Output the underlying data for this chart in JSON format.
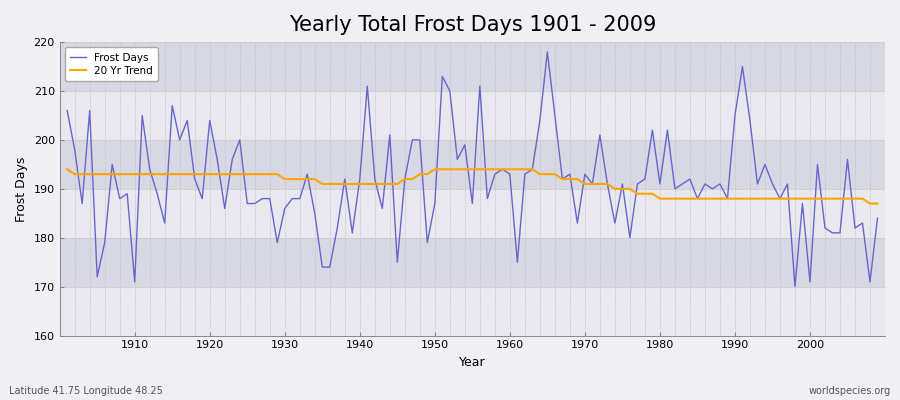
{
  "title": "Yearly Total Frost Days 1901 - 2009",
  "xlabel": "Year",
  "ylabel": "Frost Days",
  "bottom_left_label": "Latitude 41.75 Longitude 48.25",
  "bottom_right_label": "worldspecies.org",
  "years": [
    1901,
    1902,
    1903,
    1904,
    1905,
    1906,
    1907,
    1908,
    1909,
    1910,
    1911,
    1912,
    1913,
    1914,
    1915,
    1916,
    1917,
    1918,
    1919,
    1920,
    1921,
    1922,
    1923,
    1924,
    1925,
    1926,
    1927,
    1928,
    1929,
    1930,
    1931,
    1932,
    1933,
    1934,
    1935,
    1936,
    1937,
    1938,
    1939,
    1940,
    1941,
    1942,
    1943,
    1944,
    1945,
    1946,
    1947,
    1948,
    1949,
    1950,
    1951,
    1952,
    1953,
    1954,
    1955,
    1956,
    1957,
    1958,
    1959,
    1960,
    1961,
    1962,
    1963,
    1964,
    1965,
    1966,
    1967,
    1968,
    1969,
    1970,
    1971,
    1972,
    1973,
    1974,
    1975,
    1976,
    1977,
    1978,
    1979,
    1980,
    1981,
    1982,
    1983,
    1984,
    1985,
    1986,
    1987,
    1988,
    1989,
    1990,
    1991,
    1992,
    1993,
    1994,
    1995,
    1996,
    1997,
    1998,
    1999,
    2000,
    2001,
    2002,
    2003,
    2004,
    2005,
    2006,
    2007,
    2008,
    2009
  ],
  "frost_days": [
    206,
    198,
    187,
    206,
    172,
    179,
    195,
    188,
    189,
    171,
    205,
    194,
    189,
    183,
    207,
    200,
    204,
    192,
    188,
    204,
    196,
    186,
    196,
    200,
    187,
    187,
    188,
    188,
    179,
    186,
    188,
    188,
    193,
    185,
    174,
    174,
    182,
    192,
    181,
    192,
    211,
    192,
    186,
    201,
    175,
    192,
    200,
    200,
    179,
    187,
    213,
    210,
    196,
    199,
    187,
    211,
    188,
    193,
    194,
    193,
    175,
    193,
    194,
    204,
    218,
    205,
    192,
    193,
    183,
    193,
    191,
    201,
    191,
    183,
    191,
    180,
    191,
    192,
    202,
    191,
    202,
    190,
    191,
    192,
    188,
    191,
    190,
    191,
    188,
    205,
    215,
    204,
    191,
    195,
    191,
    188,
    191,
    170,
    187,
    171,
    195,
    182,
    181,
    181,
    196,
    182,
    183,
    171,
    184
  ],
  "trend": [
    194,
    193,
    193,
    193,
    193,
    193,
    193,
    193,
    193,
    193,
    193,
    193,
    193,
    193,
    193,
    193,
    193,
    193,
    193,
    193,
    193,
    193,
    193,
    193,
    193,
    193,
    193,
    193,
    193,
    192,
    192,
    192,
    192,
    192,
    191,
    191,
    191,
    191,
    191,
    191,
    191,
    191,
    191,
    191,
    191,
    192,
    192,
    193,
    193,
    194,
    194,
    194,
    194,
    194,
    194,
    194,
    194,
    194,
    194,
    194,
    194,
    194,
    194,
    193,
    193,
    193,
    192,
    192,
    192,
    191,
    191,
    191,
    191,
    190,
    190,
    190,
    189,
    189,
    189,
    188,
    188,
    188,
    188,
    188,
    188,
    188,
    188,
    188,
    188,
    188,
    188,
    188,
    188,
    188,
    188,
    188,
    188,
    188,
    188,
    188,
    188,
    188,
    188,
    188,
    188,
    188,
    188,
    187,
    187
  ],
  "line_color": "#6666cc",
  "trend_color": "#FFA500",
  "ylim": [
    160,
    220
  ],
  "yticks": [
    160,
    170,
    180,
    190,
    200,
    210,
    220
  ],
  "band_colors": [
    "#e8e8ee",
    "#d8d8e4"
  ],
  "background_color": "#f0f0f4",
  "title_fontsize": 15,
  "label_fontsize": 9,
  "tick_fontsize": 8,
  "xlim_left": 1900,
  "xlim_right": 2010
}
